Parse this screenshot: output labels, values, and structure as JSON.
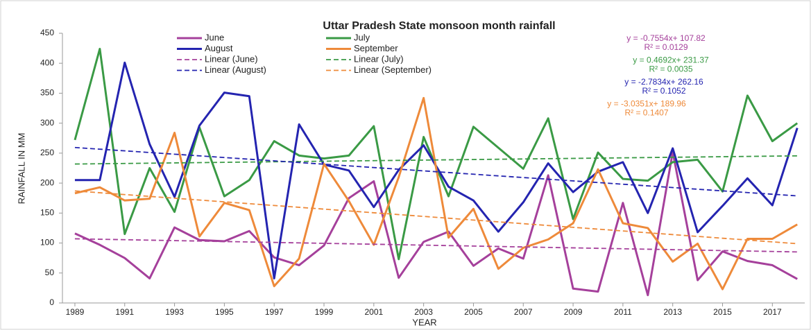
{
  "chart_data": {
    "type": "line",
    "title": "Uttar Pradesh State monsoon month rainfall",
    "xlabel": "YEAR",
    "ylabel": "RAINFALL IN MM",
    "x": [
      1989,
      1990,
      1991,
      1992,
      1993,
      1994,
      1995,
      1996,
      1997,
      1998,
      1999,
      2000,
      2001,
      2002,
      2003,
      2004,
      2005,
      2006,
      2007,
      2008,
      2009,
      2010,
      2011,
      2012,
      2013,
      2014,
      2015,
      2016,
      2017,
      2018
    ],
    "xlim": [
      1988.5,
      2018.3
    ],
    "xticks": [
      1989,
      1991,
      1993,
      1995,
      1997,
      1999,
      2001,
      2003,
      2005,
      2007,
      2009,
      2011,
      2013,
      2015,
      2017
    ],
    "ylim": [
      0,
      450
    ],
    "yticks": [
      0,
      50,
      100,
      150,
      200,
      250,
      300,
      350,
      400,
      450
    ],
    "grid": false,
    "series": [
      {
        "name": "June",
        "color": "#a5409b",
        "values": [
          116,
          97,
          75,
          41,
          126,
          105,
          103,
          120,
          76,
          63,
          96,
          175,
          203,
          42,
          102,
          119,
          62,
          91,
          74,
          213,
          24,
          19,
          167,
          13,
          252,
          38,
          86,
          70,
          63,
          40
        ]
      },
      {
        "name": "July",
        "color": "#3a9a45",
        "values": [
          272,
          424,
          115,
          225,
          152,
          293,
          178,
          205,
          270,
          246,
          241,
          246,
          295,
          73,
          277,
          178,
          294,
          259,
          224,
          308,
          140,
          251,
          207,
          204,
          235,
          239,
          186,
          346,
          270,
          300
        ]
      },
      {
        "name": "August",
        "color": "#2424b0",
        "values": [
          205,
          205,
          401,
          265,
          177,
          296,
          351,
          345,
          41,
          298,
          231,
          221,
          160,
          222,
          263,
          194,
          171,
          119,
          168,
          233,
          185,
          219,
          235,
          150,
          258,
          118,
          162,
          208,
          163,
          292
        ]
      },
      {
        "name": "September",
        "color": "#ee8a3a",
        "values": [
          183,
          193,
          171,
          174,
          284,
          111,
          167,
          155,
          28,
          74,
          232,
          170,
          97,
          210,
          342,
          109,
          157,
          57,
          92,
          106,
          133,
          223,
          133,
          125,
          69,
          99,
          23,
          107,
          107,
          131
        ]
      },
      {
        "name": "Linear (June)",
        "color": "#a5409b",
        "dashed": true,
        "x": [
          1989,
          2018
        ],
        "values": [
          107.06,
          85.16
        ]
      },
      {
        "name": "Linear (July)",
        "color": "#3a9a45",
        "dashed": true,
        "x": [
          1989,
          2018
        ],
        "values": [
          231.84,
          245.45
        ]
      },
      {
        "name": "Linear (August)",
        "color": "#2424b0",
        "dashed": true,
        "x": [
          1989,
          2018
        ],
        "values": [
          259.38,
          178.66
        ]
      },
      {
        "name": "Linear (September)",
        "color": "#ee8a3a",
        "dashed": true,
        "x": [
          1989,
          2018
        ],
        "values": [
          186.93,
          98.91
        ]
      }
    ],
    "annotations": [
      {
        "lines": [
          "y = -0.7554x+ 107.82",
          "R² = 0.0129"
        ],
        "color": "#a5409b"
      },
      {
        "lines": [
          "y = 0.4692x+ 231.37",
          "R² = 0.0035"
        ],
        "color": "#3a9a45"
      },
      {
        "lines": [
          "y = -2.7834x+ 262.16",
          "R² = 0.1052"
        ],
        "color": "#2424b0"
      },
      {
        "lines": [
          "y = -3.0351x+ 189.96",
          "R² = 0.1407"
        ],
        "color": "#ee8a3a"
      }
    ]
  }
}
